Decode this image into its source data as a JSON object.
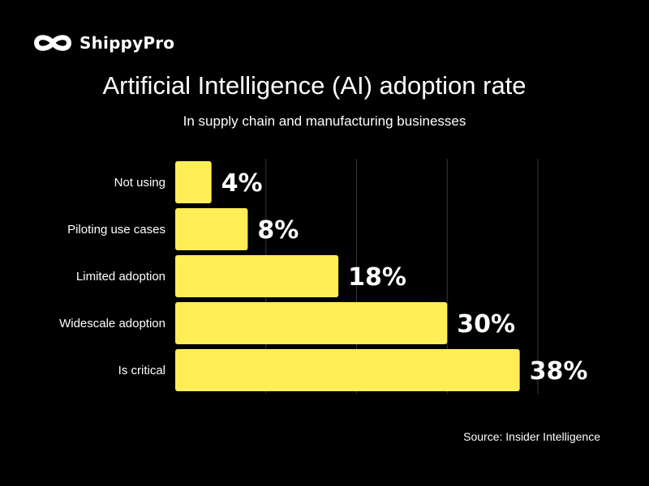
{
  "brand": {
    "name": "ShippyPro"
  },
  "chart_data": {
    "type": "bar",
    "orientation": "horizontal",
    "title": "Artificial Intelligence (AI) adoption rate",
    "subtitle": "In supply chain and manufacturing businesses",
    "categories": [
      "Not using",
      "Piloting use cases",
      "Limited adoption",
      "Widescale adoption",
      "Is critical"
    ],
    "values": [
      4,
      8,
      18,
      30,
      38
    ],
    "value_labels": [
      "4%",
      "8%",
      "18%",
      "30%",
      "38%"
    ],
    "xlim": [
      0,
      40
    ],
    "gridlines": [
      0,
      10,
      20,
      30,
      40
    ],
    "xlabel": "",
    "ylabel": "",
    "source": "Source: Insider Intelligence"
  },
  "colors": {
    "background": "#000000",
    "bar": "#FFEE58",
    "text": "#FFFFFF",
    "grid": "#3a3a3a"
  }
}
